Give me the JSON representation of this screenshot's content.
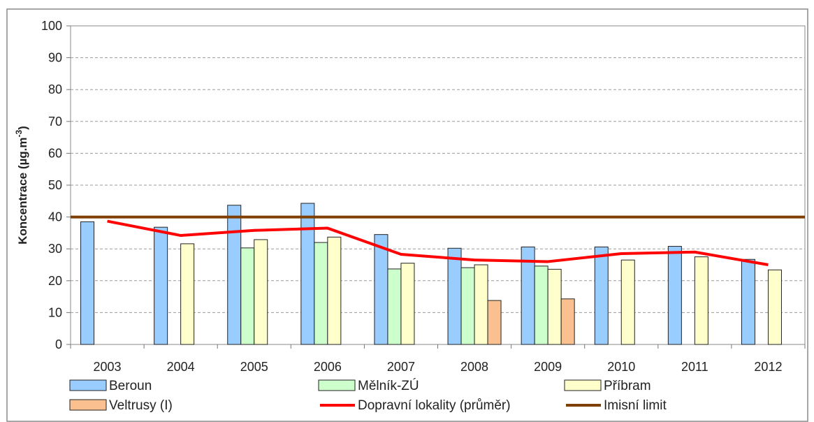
{
  "chart_data": {
    "type": "bar",
    "title": "",
    "ylabel": "Koncentrace (µg.m",
    "ylabel_superscript": "-3",
    "ylabel_close": ")",
    "ylim": [
      0,
      100
    ],
    "yticks": [
      0,
      10,
      20,
      30,
      40,
      50,
      60,
      70,
      80,
      90,
      100
    ],
    "grid": true,
    "legend_position": "bottom",
    "categories": [
      "2003",
      "2004",
      "2005",
      "2006",
      "2007",
      "2008",
      "2009",
      "2010",
      "2011",
      "2012"
    ],
    "series": [
      {
        "name": "Beroun",
        "kind": "bar",
        "color": "#99ccff",
        "values": [
          38.5,
          36.8,
          43.7,
          44.3,
          34.5,
          30.2,
          30.6,
          30.6,
          30.8,
          26.7
        ]
      },
      {
        "name": "Mělník-ZÚ",
        "kind": "bar",
        "color": "#ccffcc",
        "values": [
          null,
          null,
          30.3,
          32.0,
          23.7,
          24.1,
          24.6,
          null,
          null,
          null
        ]
      },
      {
        "name": "Příbram",
        "kind": "bar",
        "color": "#ffffcc",
        "values": [
          null,
          31.6,
          32.9,
          33.7,
          25.5,
          25.0,
          23.6,
          26.5,
          27.5,
          23.4
        ]
      },
      {
        "name": "Veltrusy (I)",
        "kind": "bar",
        "color": "#fac090",
        "values": [
          null,
          null,
          null,
          null,
          null,
          13.8,
          14.3,
          null,
          null,
          null
        ]
      },
      {
        "name": "Dopravní lokality (průměr)",
        "kind": "line",
        "color": "#ff0000",
        "values": [
          38.7,
          34.2,
          35.8,
          36.5,
          28.3,
          26.5,
          26.0,
          28.5,
          29.0,
          25.0
        ]
      },
      {
        "name": "Imisní limit",
        "kind": "hline",
        "color": "#7f3f00",
        "value": 40
      }
    ]
  }
}
